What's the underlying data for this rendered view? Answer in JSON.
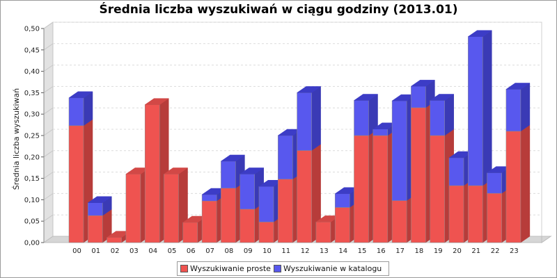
{
  "colors": {
    "simple_front": "#ef5350",
    "simple_side": "#b73c3a",
    "simple_top": "#d24846",
    "catalog_front": "#5858ee",
    "catalog_side": "#3a3ab5",
    "catalog_top": "#3c3cc6"
  },
  "chart_data": {
    "type": "bar",
    "stacked": true,
    "three_d": true,
    "title": "Średnia liczba wyszukiwań w ciągu godziny (2013.01)",
    "xlabel": "",
    "ylabel": "Średnia liczba wyszukiwań",
    "ylim": [
      0,
      0.5
    ],
    "yticks": [
      "0,00",
      "0,05",
      "0,10",
      "0,15",
      "0,20",
      "0,25",
      "0,30",
      "0,35",
      "0,40",
      "0,45",
      "0,50"
    ],
    "grid": true,
    "legend_position": "bottom",
    "categories": [
      "00",
      "01",
      "02",
      "03",
      "04",
      "05",
      "06",
      "07",
      "08",
      "09",
      "10",
      "11",
      "12",
      "13",
      "14",
      "15",
      "16",
      "17",
      "18",
      "19",
      "20",
      "21",
      "22",
      "23"
    ],
    "series": [
      {
        "name": "Wyszukiwanie proste",
        "values": [
          0.273,
          0.063,
          0.012,
          0.16,
          0.322,
          0.16,
          0.047,
          0.097,
          0.127,
          0.078,
          0.048,
          0.148,
          0.215,
          0.048,
          0.082,
          0.25,
          0.25,
          0.098,
          0.315,
          0.25,
          0.133,
          0.133,
          0.115,
          0.26
        ]
      },
      {
        "name": "Wyszukiwanie w katalogu",
        "values": [
          0.065,
          0.03,
          0.0,
          0.0,
          0.0,
          0.0,
          0.0,
          0.015,
          0.063,
          0.082,
          0.083,
          0.102,
          0.135,
          0.0,
          0.032,
          0.082,
          0.015,
          0.233,
          0.05,
          0.082,
          0.065,
          0.348,
          0.048,
          0.098
        ]
      }
    ]
  }
}
